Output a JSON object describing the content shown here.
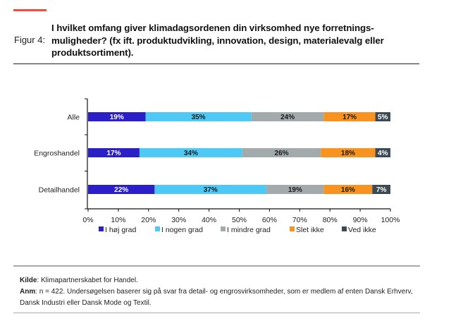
{
  "header": {
    "figure_label": "Figur 4:",
    "title": "I hvilket omfang giver klimadagsordenen din virksomhed nye forretnings-muligheder? (fx ift. produktudvikling, innovation, design, materialevalg eller produktsortiment).",
    "accent_color": "#f04e3e"
  },
  "chart_data": {
    "type": "bar",
    "orientation": "horizontal",
    "stacked": true,
    "title": "I hvilket omfang giver klimadagsordenen din virksomhed nye forretningsmuligheder? (fx ift. produktudvikling, innovation, design, materialevalg eller produktsortiment).",
    "xlabel": "",
    "ylabel": "",
    "xlim": [
      0,
      100
    ],
    "x_tick_labels": [
      "0%",
      "10%",
      "20%",
      "30%",
      "40%",
      "50%",
      "60%",
      "70%",
      "80%",
      "90%",
      "100%"
    ],
    "x_ticks": [
      0,
      10,
      20,
      30,
      40,
      50,
      60,
      70,
      80,
      90,
      100
    ],
    "grid": false,
    "legend_position": "bottom",
    "categories": [
      "Alle",
      "Engroshandel",
      "Detailhandel"
    ],
    "series": [
      {
        "name": "I høj grad",
        "color": "#2b1fc8",
        "label_color": "#ffffff",
        "values": [
          19,
          17,
          22
        ]
      },
      {
        "name": "I nogen grad",
        "color": "#4ec8f4",
        "label_color": "#1a1a1a",
        "values": [
          35,
          34,
          37
        ]
      },
      {
        "name": "I mindre grad",
        "color": "#a3aaab",
        "label_color": "#1a1a1a",
        "values": [
          24,
          26,
          19
        ]
      },
      {
        "name": "Slet ikke",
        "color": "#f7931e",
        "label_color": "#1a1a1a",
        "values": [
          17,
          18,
          16
        ]
      },
      {
        "name": "Ved ikke",
        "color": "#3d4a54",
        "label_color": "#ffffff",
        "values": [
          5,
          4,
          7
        ]
      }
    ],
    "value_suffix": "%"
  },
  "footer": {
    "source_label": "Kilde",
    "source_text": ": Klimapartnerskabet for Handel.",
    "note_label": "Anm",
    "note_text": ": n = 422. Undersøgelsen baserer sig på svar fra detail- og engrosvirksomheder, som er medlem af enten Dansk Erhverv, Dansk Industri eller Dansk Mode og Textil."
  }
}
